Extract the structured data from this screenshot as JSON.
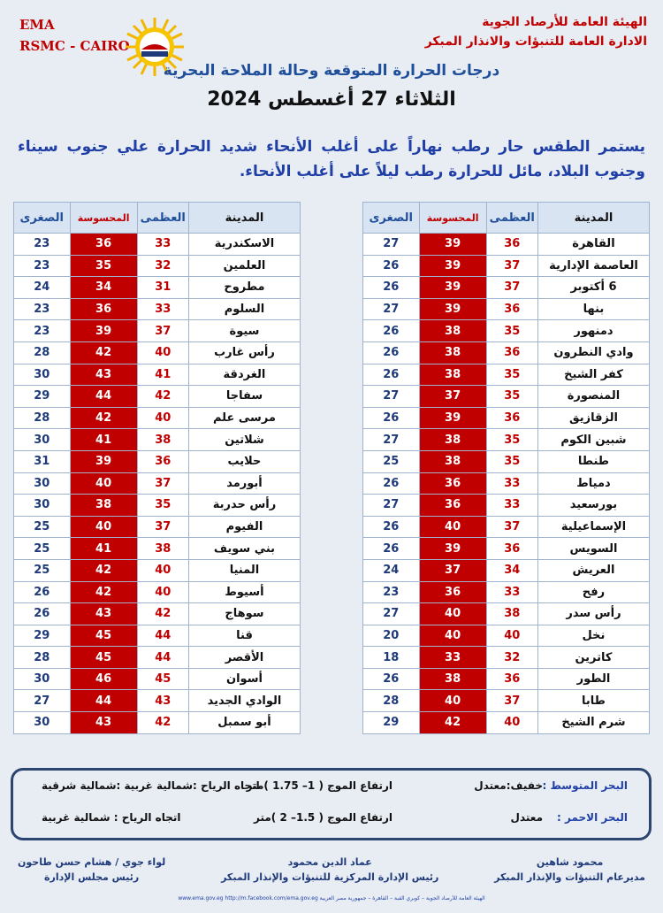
{
  "header": {
    "left_lines": [
      "EMA",
      "RSMC - CAIRO"
    ],
    "right_lines": [
      "الهيئة العامة للأرصاد الجوية",
      "الادارة العامة للتنبؤات والانذار المبكر"
    ],
    "title": "درجات الحرارة المتوقعة وحالة الملاحة البحرية",
    "date": "الثلاثاء 27 أغسطس 2024"
  },
  "description": "يستمر الطقس حار رطب نهاراً على أغلب الأنحاء شديد الحرارة علي جنوب سيناء وجنوب البلاد، مائل للحرارة رطب ليلاً على أغلب الأنحاء.",
  "tables": [
    {
      "columns": [
        "المدينة",
        "العظمى",
        "المحسوسة",
        "الصغرى"
      ],
      "rows": [
        [
          "القاهرة",
          36,
          39,
          27
        ],
        [
          "العاصمة الإدارية",
          37,
          39,
          26
        ],
        [
          "6 أكتوبر",
          37,
          39,
          26
        ],
        [
          "بنها",
          36,
          39,
          27
        ],
        [
          "دمنهور",
          35,
          38,
          26
        ],
        [
          "وادي النطرون",
          36,
          38,
          26
        ],
        [
          "كفر الشيخ",
          35,
          38,
          26
        ],
        [
          "المنصورة",
          35,
          37,
          27
        ],
        [
          "الزقازيق",
          36,
          39,
          26
        ],
        [
          "شبين الكوم",
          35,
          38,
          27
        ],
        [
          "طنطا",
          35,
          38,
          25
        ],
        [
          "دمياط",
          33,
          36,
          26
        ],
        [
          "بورسعيد",
          33,
          36,
          27
        ],
        [
          "الإسماعيلية",
          37,
          40,
          26
        ],
        [
          "السويس",
          36,
          39,
          26
        ],
        [
          "العريش",
          34,
          37,
          24
        ],
        [
          "رفح",
          33,
          36,
          23
        ],
        [
          "رأس سدر",
          38,
          40,
          27
        ],
        [
          "نخل",
          40,
          40,
          20
        ],
        [
          "كاترين",
          32,
          33,
          18
        ],
        [
          "الطور",
          36,
          38,
          26
        ],
        [
          "طابا",
          37,
          40,
          28
        ],
        [
          "شرم الشيخ",
          40,
          42,
          29
        ]
      ]
    },
    {
      "columns": [
        "المدينة",
        "العظمى",
        "المحسوسة",
        "الصغرى"
      ],
      "rows": [
        [
          "الاسكندرية",
          33,
          36,
          23
        ],
        [
          "العلمين",
          32,
          35,
          23
        ],
        [
          "مطروح",
          31,
          34,
          24
        ],
        [
          "السلوم",
          33,
          36,
          23
        ],
        [
          "سيوة",
          37,
          39,
          23
        ],
        [
          "رأس غارب",
          40,
          42,
          28
        ],
        [
          "الغردقة",
          41,
          43,
          30
        ],
        [
          "سفاجا",
          42,
          44,
          29
        ],
        [
          "مرسى علم",
          40,
          42,
          28
        ],
        [
          "شلاتين",
          38,
          41,
          30
        ],
        [
          "حلايب",
          36,
          39,
          31
        ],
        [
          "أبورمد",
          37,
          40,
          30
        ],
        [
          "رأس حدربة",
          35,
          38,
          30
        ],
        [
          "الفيوم",
          37,
          40,
          25
        ],
        [
          "بني سويف",
          38,
          41,
          25
        ],
        [
          "المنيا",
          40,
          42,
          25
        ],
        [
          "أسيوط",
          40,
          42,
          26
        ],
        [
          "سوهاج",
          42,
          43,
          26
        ],
        [
          "قنا",
          44,
          45,
          29
        ],
        [
          "الأقصر",
          44,
          45,
          28
        ],
        [
          "أسوان",
          45,
          46,
          30
        ],
        [
          "الوادي الجديد",
          43,
          44,
          27
        ],
        [
          "أبو سمبل",
          42,
          43,
          30
        ]
      ]
    }
  ],
  "marine": [
    {
      "sea": "البحر المتوسط :",
      "state": "خفيف:معتدل",
      "waves": "ارتفاع الموج ( 1– 1.75 )متر",
      "wind": "اتجاه الرياح :شمالية غربية :شمالية شرقية"
    },
    {
      "sea": "البحر الاحمر :",
      "state": "معتدل",
      "waves": "ارتفاع الموج ( 1.5– 2 )متر",
      "wind": "اتجاه الرياح : شمالية غربية"
    }
  ],
  "signatures": [
    {
      "name": "محمود شاهين",
      "role": "مديرعام التنبؤات والإنذار المبكر"
    },
    {
      "name": "عماد الدين محمود",
      "role": "رئيس الإدارة المركزية للتنبؤات والإنذار المبكر"
    },
    {
      "name": "لواء جوي / هشام حسن طاحون",
      "role": "رئيس مجلس الإدارة"
    }
  ],
  "footer": "الهيئة العامة للأرصاد الجوية – كوبري القبة – القاهرة – جمهورية مصر العربية www.ema.gov.eg http://m.facebook.com/ema.gov.eg"
}
